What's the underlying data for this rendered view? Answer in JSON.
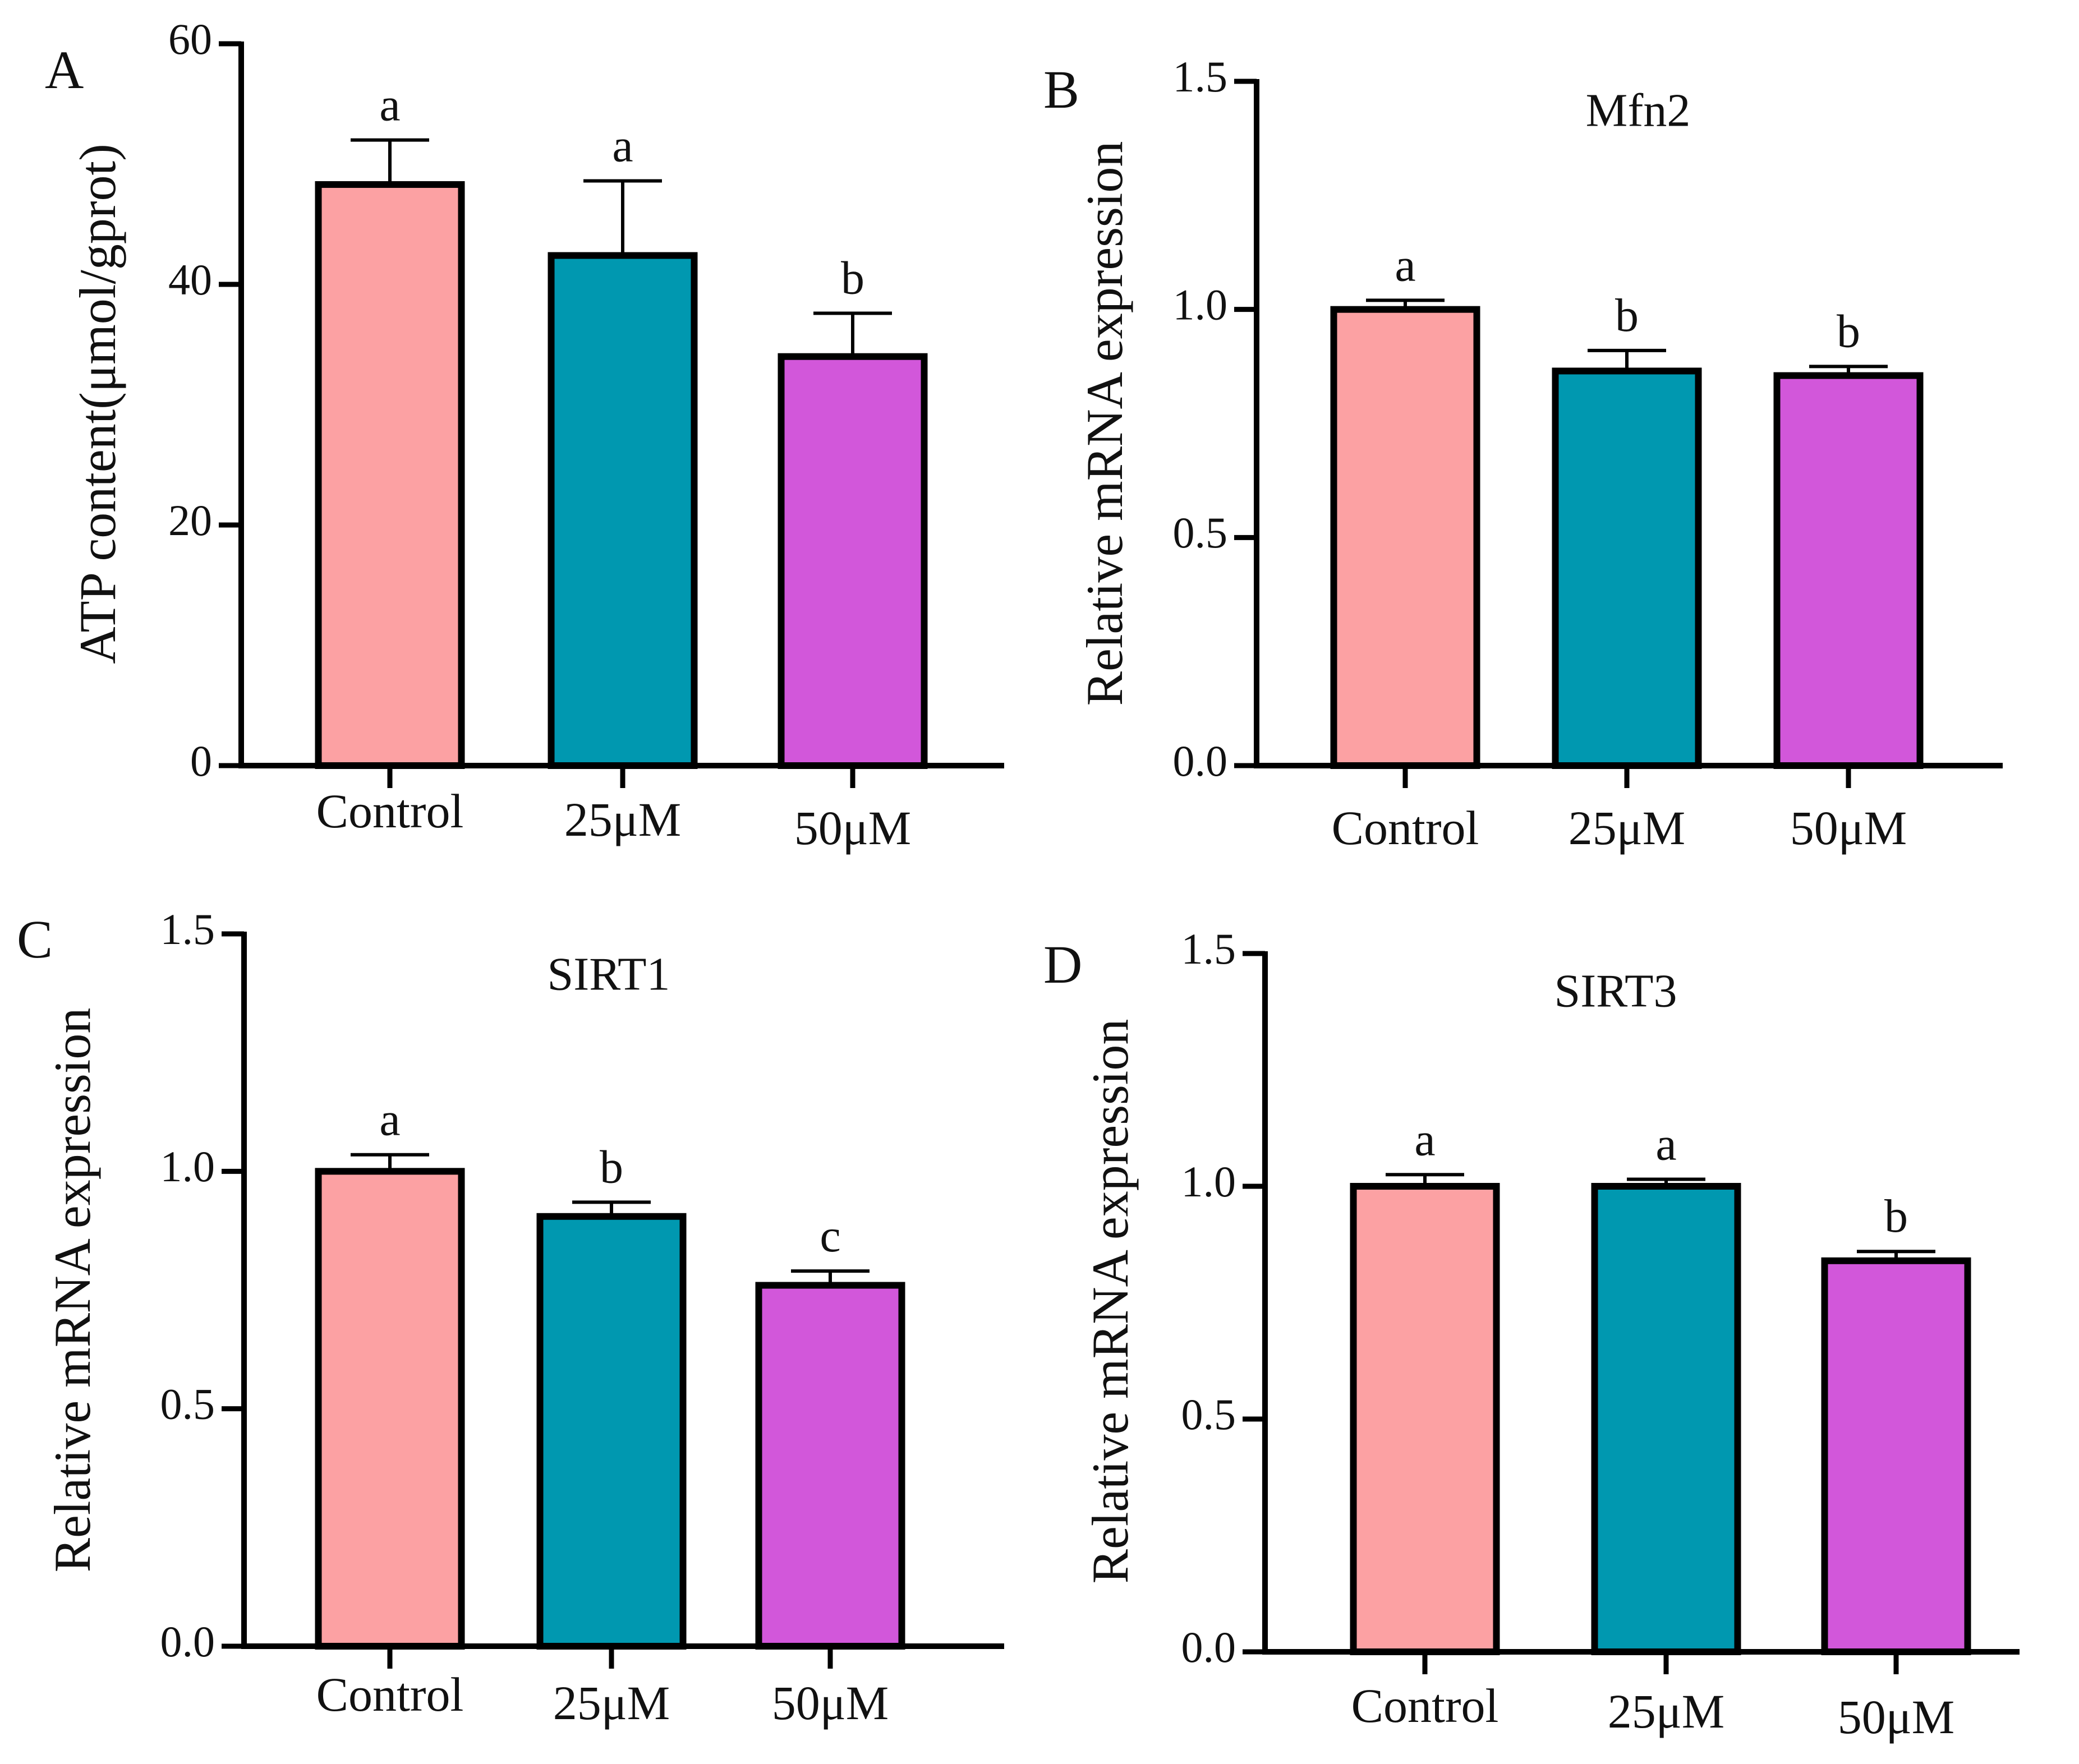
{
  "colors": {
    "control": "#fca1a3",
    "low": "#0098b0",
    "high": "#d257da",
    "stroke": "#000000"
  },
  "chart_data": [
    {
      "panel": "A",
      "type": "bar",
      "title": "",
      "ylabel": "ATP content(μmol/gprot)",
      "ylim": [
        0,
        60
      ],
      "yticks": [
        "0",
        "20",
        "40",
        "60"
      ],
      "categories": [
        "Control",
        "25μM",
        "50μM"
      ],
      "values": [
        48.3,
        42.4,
        34.0
      ],
      "errors": [
        3.7,
        6.2,
        3.6
      ],
      "significance": [
        "a",
        "a",
        "b"
      ]
    },
    {
      "panel": "B",
      "type": "bar",
      "title": "Mfn2",
      "ylabel": "Relative mRNA expression",
      "ylim": [
        0,
        1.5
      ],
      "yticks": [
        "0.0",
        "0.5",
        "1.0",
        "1.5"
      ],
      "categories": [
        "Control",
        "25μM",
        "50μM"
      ],
      "values": [
        1.0,
        0.865,
        0.855
      ],
      "errors": [
        0.02,
        0.045,
        0.02
      ],
      "significance": [
        "a",
        "b",
        "b"
      ]
    },
    {
      "panel": "C",
      "type": "bar",
      "title": "SIRT1",
      "ylabel": "Relative mRNA expression",
      "ylim": [
        0,
        1.5
      ],
      "yticks": [
        "0.0",
        "0.5",
        "1.0",
        "1.5"
      ],
      "categories": [
        "Control",
        "25μM",
        "50μM"
      ],
      "values": [
        1.0,
        0.905,
        0.76
      ],
      "errors": [
        0.035,
        0.03,
        0.03
      ],
      "significance": [
        "a",
        "b",
        "c"
      ]
    },
    {
      "panel": "D",
      "type": "bar",
      "title": "SIRT3",
      "ylabel": "Relative mRNA expression",
      "ylim": [
        0,
        1.5
      ],
      "yticks": [
        "0.0",
        "0.5",
        "1.0",
        "1.5"
      ],
      "categories": [
        "Control",
        "25μM",
        "50μM"
      ],
      "values": [
        1.0,
        1.0,
        0.84
      ],
      "errors": [
        0.025,
        0.015,
        0.02
      ],
      "significance": [
        "a",
        "a",
        "b"
      ]
    }
  ]
}
